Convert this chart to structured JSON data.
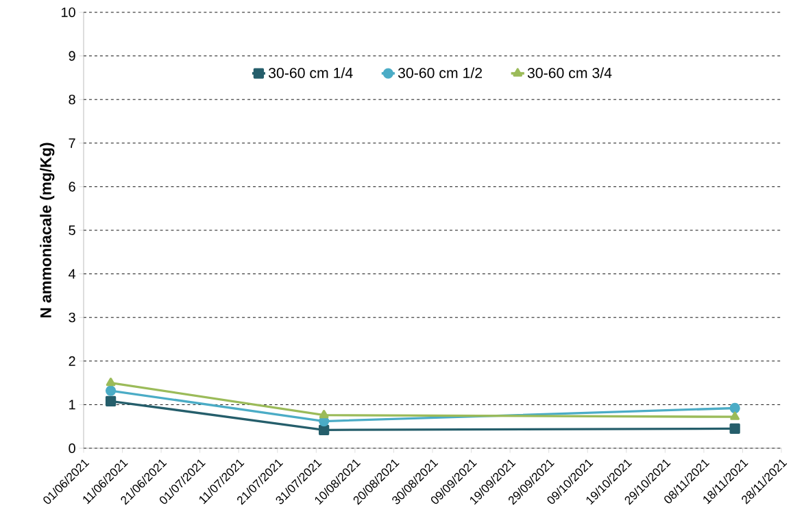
{
  "chart_data": {
    "type": "line",
    "ylabel": "N ammoniacale (mg/Kg)",
    "x": [
      "2021-06-08",
      "2021-08-02",
      "2021-11-16"
    ],
    "series": [
      {
        "name": "30-60 cm 1/4",
        "color": "#255e6b",
        "marker": "square",
        "values": [
          1.08,
          0.42,
          0.45
        ]
      },
      {
        "name": "30-60 cm 1/2",
        "color": "#4bacc6",
        "marker": "circle",
        "values": [
          1.32,
          0.62,
          0.92
        ]
      },
      {
        "name": "30-60 cm 3/4",
        "color": "#9bbb59",
        "marker": "triangle",
        "values": [
          1.5,
          0.76,
          0.72
        ]
      }
    ],
    "xlim": [
      "2021-06-01",
      "2021-11-28"
    ],
    "xticks": [
      {
        "value": "2021-06-01",
        "label": "01/06/2021"
      },
      {
        "value": "2021-06-11",
        "label": "11/06/2021"
      },
      {
        "value": "2021-06-21",
        "label": "21/06/2021"
      },
      {
        "value": "2021-07-01",
        "label": "01/07/2021"
      },
      {
        "value": "2021-07-11",
        "label": "11/07/2021"
      },
      {
        "value": "2021-07-21",
        "label": "21/07/2021"
      },
      {
        "value": "2021-07-31",
        "label": "31/07/2021"
      },
      {
        "value": "2021-08-10",
        "label": "10/08/2021"
      },
      {
        "value": "2021-08-20",
        "label": "20/08/2021"
      },
      {
        "value": "2021-08-30",
        "label": "30/08/2021"
      },
      {
        "value": "2021-09-09",
        "label": "09/09/2021"
      },
      {
        "value": "2021-09-19",
        "label": "19/09/2021"
      },
      {
        "value": "2021-09-29",
        "label": "29/09/2021"
      },
      {
        "value": "2021-10-09",
        "label": "09/10/2021"
      },
      {
        "value": "2021-10-19",
        "label": "19/10/2021"
      },
      {
        "value": "2021-10-29",
        "label": "29/10/2021"
      },
      {
        "value": "2021-11-08",
        "label": "08/11/2021"
      },
      {
        "value": "2021-11-18",
        "label": "18/11/2021"
      },
      {
        "value": "2021-11-28",
        "label": "28/11/2021"
      }
    ],
    "ylim": [
      0,
      10
    ],
    "yticks": [
      0,
      1,
      2,
      3,
      4,
      5,
      6,
      7,
      8,
      9,
      10
    ],
    "grid": "y",
    "legend": "top",
    "line_style": "solid"
  }
}
